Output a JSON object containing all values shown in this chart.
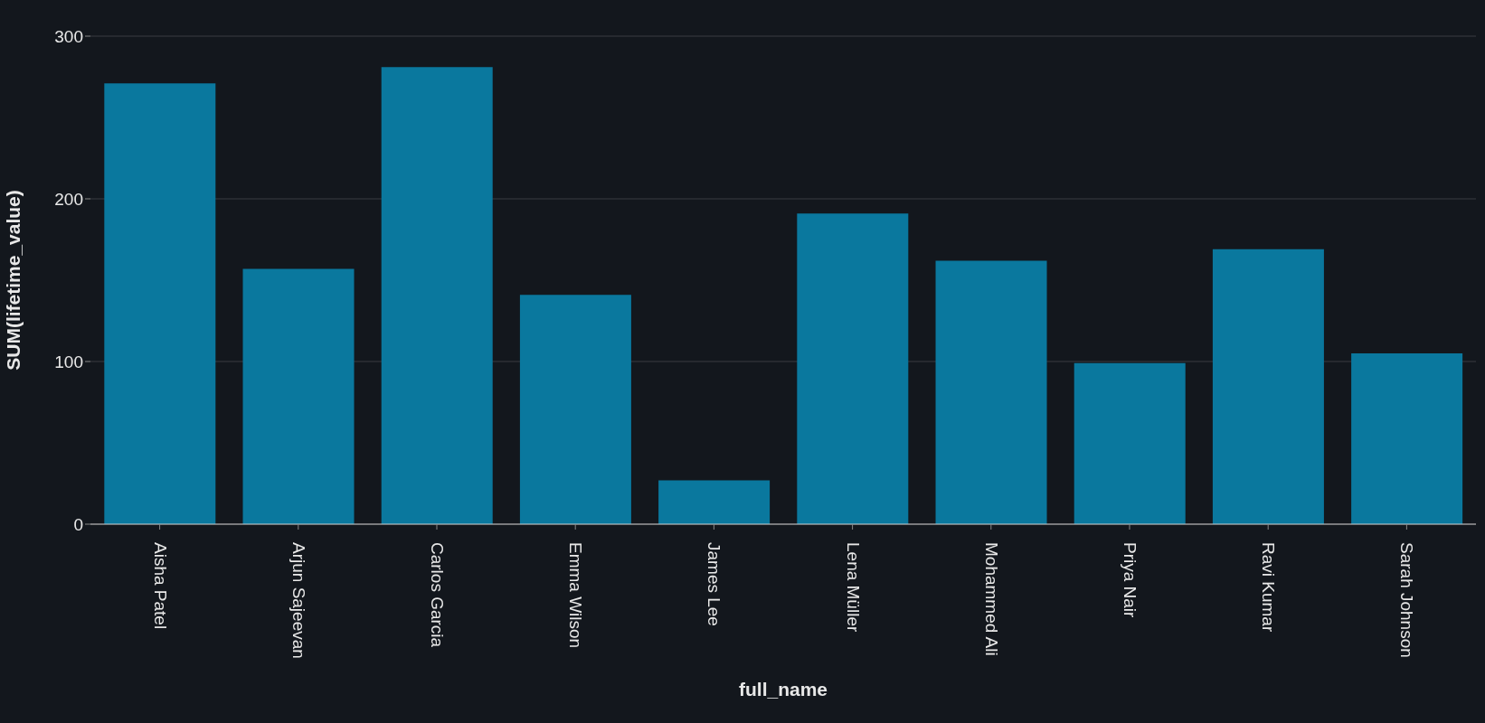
{
  "chart_data": {
    "type": "bar",
    "xlabel": "full_name",
    "ylabel": "SUM(lifetime_value)",
    "categories": [
      "Aisha Patel",
      "Arjun Sajeevan",
      "Carlos Garcia",
      "Emma Wilson",
      "James Lee",
      "Lena Müller",
      "Mohammed Ali",
      "Priya Nair",
      "Ravi Kumar",
      "Sarah Johnson"
    ],
    "values": [
      271,
      157,
      281,
      141,
      27,
      191,
      162,
      99,
      169,
      105
    ],
    "color": "#0a789e",
    "ylim": [
      0,
      300
    ],
    "yticks": [
      0,
      100,
      200,
      300
    ],
    "grid": "y"
  }
}
